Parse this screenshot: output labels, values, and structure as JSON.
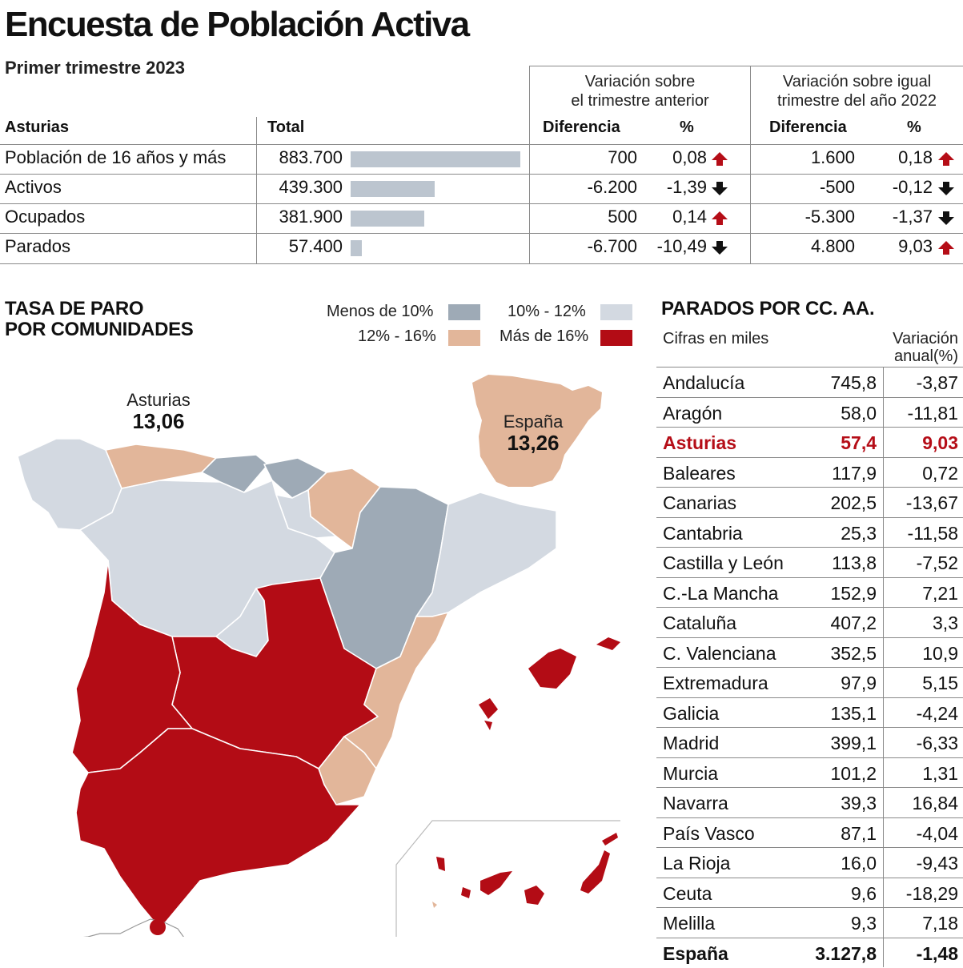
{
  "title": "Encuesta de Población Activa",
  "subtitle": "Primer trimestre 2023",
  "top_table": {
    "group1": "Variación sobre el trimestre anterior",
    "group1_l1": "Variación sobre",
    "group1_l2": "el trimestre anterior",
    "group2_l1": "Variación sobre igual",
    "group2_l2": "trimestre del año 2022",
    "col_region": "Asturias",
    "col_total": "Total",
    "col_diff1": "Diferencia",
    "col_pct1": "%",
    "col_diff2": "Diferencia",
    "col_pct2": "%",
    "rows": [
      {
        "label": "Población de 16 años y más",
        "total": "883.700",
        "total_value": 883700,
        "diff1": "700",
        "pct1": "0,08",
        "dir1": "up",
        "diff2": "1.600",
        "pct2": "0,18",
        "dir2": "up"
      },
      {
        "label": "Activos",
        "total": "439.300",
        "total_value": 439300,
        "diff1": "-6.200",
        "pct1": "-1,39",
        "dir1": "down",
        "diff2": "-500",
        "pct2": "-0,12",
        "dir2": "down"
      },
      {
        "label": "Ocupados",
        "total": "381.900",
        "total_value": 381900,
        "diff1": "500",
        "pct1": "0,14",
        "dir1": "up",
        "diff2": "-5.300",
        "pct2": "-1,37",
        "dir2": "down"
      },
      {
        "label": "Parados",
        "total": "57.400",
        "total_value": 57400,
        "diff1": "-6.700",
        "pct1": "-10,49",
        "dir1": "down",
        "diff2": "4.800",
        "pct2": "9,03",
        "dir2": "up"
      }
    ]
  },
  "map": {
    "title_l1": "TASA DE PARO",
    "title_l2": "POR COMUNIDADES",
    "legend": [
      {
        "label": "Menos de 10%",
        "color": "#9eaab6"
      },
      {
        "label": "10% - 12%",
        "color": "#d3d9e1"
      },
      {
        "label": "12% - 16%",
        "color": "#e2b69a"
      },
      {
        "label": "Más de 16%",
        "color": "#b30c15"
      }
    ],
    "asturias_label": "Asturias",
    "asturias_value": "13,06",
    "spain_label": "España",
    "spain_value": "13,26"
  },
  "right_table": {
    "title": "PARADOS POR CC. AA.",
    "sub_left": "Cifras en miles",
    "sub_right_l1": "Variación",
    "sub_right_l2": "anual(%)",
    "rows": [
      {
        "name": "Andalucía",
        "value": "745,8",
        "var": "-3,87"
      },
      {
        "name": "Aragón",
        "value": "58,0",
        "var": "-11,81"
      },
      {
        "name": "Asturias",
        "value": "57,4",
        "var": "9,03"
      },
      {
        "name": "Baleares",
        "value": "117,9",
        "var": "0,72"
      },
      {
        "name": "Canarias",
        "value": "202,5",
        "var": "-13,67"
      },
      {
        "name": "Cantabria",
        "value": "25,3",
        "var": "-11,58"
      },
      {
        "name": "Castilla y León",
        "value": "113,8",
        "var": "-7,52"
      },
      {
        "name": "C.-La Mancha",
        "value": "152,9",
        "var": "7,21"
      },
      {
        "name": "Cataluña",
        "value": "407,2",
        "var": "3,3"
      },
      {
        "name": "C. Valenciana",
        "value": "352,5",
        "var": "10,9"
      },
      {
        "name": "Extremadura",
        "value": "97,9",
        "var": "5,15"
      },
      {
        "name": "Galicia",
        "value": "135,1",
        "var": "-4,24"
      },
      {
        "name": "Madrid",
        "value": "399,1",
        "var": "-6,33"
      },
      {
        "name": "Murcia",
        "value": "101,2",
        "var": "1,31"
      },
      {
        "name": "Navarra",
        "value": "39,3",
        "var": "16,84"
      },
      {
        "name": "País Vasco",
        "value": "87,1",
        "var": "-4,04"
      },
      {
        "name": "La Rioja",
        "value": "16,0",
        "var": "-9,43"
      },
      {
        "name": "Ceuta",
        "value": "9,6",
        "var": "-18,29"
      },
      {
        "name": "Melilla",
        "value": "9,3",
        "var": "7,18"
      },
      {
        "name": "España",
        "value": "3.127,8",
        "var": "-1,48"
      }
    ]
  },
  "chart_data": {
    "type": "table",
    "title": "Encuesta de Población Activa",
    "subtitle": "Primer trimestre 2023",
    "asturias_indicators": {
      "categories": [
        "Población de 16 años y más",
        "Activos",
        "Ocupados",
        "Parados"
      ],
      "totals": [
        883700,
        439300,
        381900,
        57400
      ],
      "diff_prev_quarter": [
        700,
        -6200,
        500,
        -6700
      ],
      "pct_prev_quarter": [
        0.08,
        -1.39,
        0.14,
        -10.49
      ],
      "diff_prev_year": [
        1600,
        -500,
        -5300,
        4800
      ],
      "pct_prev_year": [
        0.18,
        -0.12,
        -1.37,
        9.03
      ]
    },
    "unemployment_rate": {
      "Asturias": 13.06,
      "España": 13.26
    },
    "unemployed_by_region_thousands": {
      "categories": [
        "Andalucía",
        "Aragón",
        "Asturias",
        "Baleares",
        "Canarias",
        "Cantabria",
        "Castilla y León",
        "C.-La Mancha",
        "Cataluña",
        "C. Valenciana",
        "Extremadura",
        "Galicia",
        "Madrid",
        "Murcia",
        "Navarra",
        "País Vasco",
        "La Rioja",
        "Ceuta",
        "Melilla",
        "España"
      ],
      "values": [
        745.8,
        58.0,
        57.4,
        117.9,
        202.5,
        25.3,
        113.8,
        152.9,
        407.2,
        352.5,
        97.9,
        135.1,
        399.1,
        101.2,
        39.3,
        87.1,
        16.0,
        9.6,
        9.3,
        3127.8
      ],
      "annual_variation_pct": [
        -3.87,
        -11.81,
        9.03,
        0.72,
        -13.67,
        -11.58,
        -7.52,
        7.21,
        3.3,
        10.9,
        5.15,
        -4.24,
        -6.33,
        1.31,
        16.84,
        -4.04,
        -9.43,
        -18.29,
        7.18,
        -1.48
      ]
    }
  }
}
